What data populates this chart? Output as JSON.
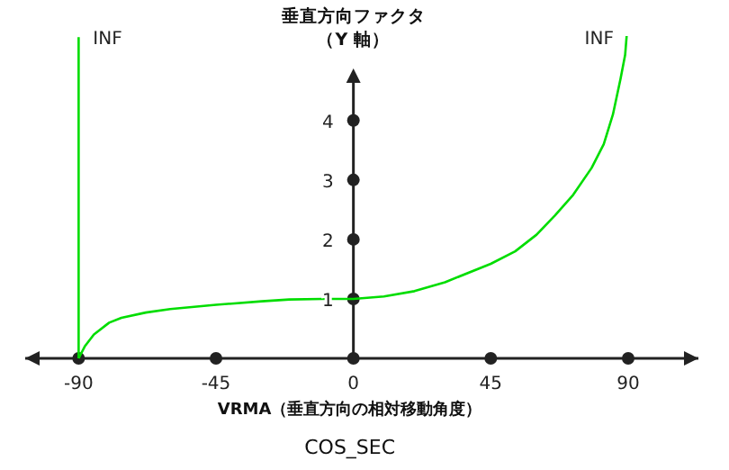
{
  "chart_data": {
    "type": "line",
    "title": "COS_SEC",
    "xlabel": "VRMA（垂直方向の相対移動角度）",
    "ylabel": "垂直方向ファクタ（Y 軸）",
    "xlim": [
      -107.5,
      113
    ],
    "ylim": [
      0,
      5.45
    ],
    "xticks": [
      -90,
      -45,
      0,
      45,
      90
    ],
    "yticks": [
      1,
      2,
      3,
      4
    ],
    "grid": false,
    "marker": "none",
    "line_style": "solid",
    "series": [
      {
        "color": "#00dd00",
        "x": [
          -90,
          -88,
          -85,
          -80,
          -76,
          -68,
          -60,
          -45,
          -30,
          -21,
          -10,
          0,
          10,
          20,
          30,
          45,
          53,
          60,
          66,
          72,
          78,
          82,
          85,
          87.5,
          89,
          89.5
        ],
        "values": [
          0,
          0.2,
          0.4,
          0.6,
          0.68,
          0.77,
          0.83,
          0.9,
          0.96,
          0.99,
          1.0,
          1.0,
          1.04,
          1.13,
          1.28,
          1.59,
          1.8,
          2.08,
          2.4,
          2.75,
          3.2,
          3.6,
          4.1,
          4.7,
          5.1,
          5.42
        ]
      },
      {
        "color": "#00dd00",
        "x": [
          -90,
          -90
        ],
        "values": [
          0,
          5.4
        ]
      }
    ],
    "annotations": [
      {
        "text": "INF",
        "x": -90,
        "y": 5.4
      },
      {
        "text": "INF",
        "x": 90,
        "y": 5.4
      }
    ]
  }
}
